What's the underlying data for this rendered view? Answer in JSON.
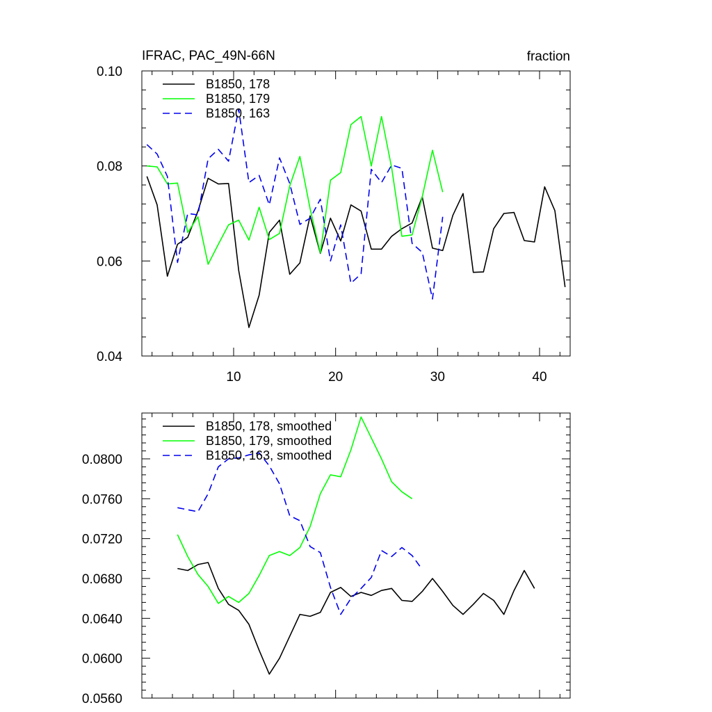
{
  "chart_data": [
    {
      "type": "line",
      "title": "IFRAC, PAC_49N-66N",
      "units_label": "fraction",
      "xlim": [
        1,
        43
      ],
      "ylim": [
        0.04,
        0.1
      ],
      "x_ticks": [
        10,
        20,
        30,
        40
      ],
      "x_tick_labels": [
        "10",
        "20",
        "30",
        "40"
      ],
      "y_ticks": [
        0.04,
        0.06,
        0.08,
        0.1
      ],
      "y_tick_labels": [
        "0.04",
        "0.06",
        "0.08",
        "0.10"
      ],
      "legend_position": "top-left",
      "series": [
        {
          "name": "B1850, 178",
          "color": "#000000",
          "dash": "solid",
          "x_start": 1.5,
          "values": [
            0.0778,
            0.0718,
            0.0568,
            0.0635,
            0.065,
            0.0705,
            0.0774,
            0.0762,
            0.0763,
            0.058,
            0.046,
            0.0528,
            0.066,
            0.0686,
            0.0572,
            0.0596,
            0.0695,
            0.0616,
            0.069,
            0.0642,
            0.0718,
            0.0705,
            0.0625,
            0.0625,
            0.0652,
            0.0668,
            0.068,
            0.0735,
            0.0627,
            0.0622,
            0.0696,
            0.0742,
            0.0576,
            0.0577,
            0.0668,
            0.07,
            0.0702,
            0.0643,
            0.064,
            0.0756,
            0.0706,
            0.0545
          ]
        },
        {
          "name": "B1850, 179",
          "color": "#00ff00",
          "dash": "solid",
          "x_start": 1.5,
          "values": [
            0.08,
            0.0798,
            0.0762,
            0.0764,
            0.066,
            0.0693,
            0.0593,
            0.0635,
            0.0676,
            0.0686,
            0.0644,
            0.0713,
            0.0645,
            0.0658,
            0.0758,
            0.082,
            0.071,
            0.0617,
            0.077,
            0.0786,
            0.0887,
            0.0904,
            0.08,
            0.0904,
            0.0796,
            0.0652,
            0.0655,
            0.0735,
            0.0833,
            0.0745
          ]
        },
        {
          "name": "B1850, 163",
          "color": "#0000ee",
          "dash": "dashed",
          "x_start": 1.5,
          "values": [
            0.0845,
            0.0825,
            0.0778,
            0.0597,
            0.07,
            0.0697,
            0.0815,
            0.0835,
            0.081,
            0.092,
            0.0765,
            0.078,
            0.0718,
            0.0817,
            0.0763,
            0.0677,
            0.069,
            0.073,
            0.06,
            0.0676,
            0.0553,
            0.0573,
            0.0793,
            0.0765,
            0.0802,
            0.0795,
            0.0637,
            0.0618,
            0.052,
            0.0693
          ]
        }
      ]
    },
    {
      "type": "line",
      "xlim": [
        1,
        43
      ],
      "ylim": [
        0.056,
        0.0846
      ],
      "x_ticks": [
        10,
        20,
        30,
        40
      ],
      "y_ticks": [
        0.056,
        0.06,
        0.064,
        0.068,
        0.072,
        0.076,
        0.08
      ],
      "y_tick_labels": [
        "0.0560",
        "0.0600",
        "0.0640",
        "0.0680",
        "0.0720",
        "0.0760",
        "0.0800"
      ],
      "legend_position": "top-left",
      "series": [
        {
          "name": "B1850, 178, smoothed",
          "color": "#000000",
          "dash": "solid",
          "x_start": 4.5,
          "values": [
            0.069,
            0.0688,
            0.0694,
            0.0696,
            0.067,
            0.0654,
            0.0648,
            0.0634,
            0.0608,
            0.0584,
            0.06,
            0.0622,
            0.0644,
            0.0642,
            0.0646,
            0.0666,
            0.0671,
            0.0662,
            0.0666,
            0.0663,
            0.0668,
            0.067,
            0.0658,
            0.0657,
            0.0667,
            0.068,
            0.0667,
            0.0653,
            0.0644,
            0.0654,
            0.0665,
            0.0658,
            0.0644,
            0.0668,
            0.0688,
            0.067
          ]
        },
        {
          "name": "B1850, 179, smoothed",
          "color": "#00ff00",
          "dash": "solid",
          "x_start": 4.5,
          "values": [
            0.0724,
            0.0702,
            0.0684,
            0.0672,
            0.0655,
            0.0662,
            0.0656,
            0.0665,
            0.0683,
            0.0703,
            0.0707,
            0.0703,
            0.0711,
            0.0732,
            0.0765,
            0.0784,
            0.0782,
            0.0809,
            0.0842,
            0.0821,
            0.08,
            0.0777,
            0.0767,
            0.076
          ]
        },
        {
          "name": "B1850, 163, smoothed",
          "color": "#0000ee",
          "dash": "dashed",
          "x_start": 4.5,
          "values": [
            0.0751,
            0.0749,
            0.0747,
            0.0765,
            0.0792,
            0.08,
            0.0801,
            0.0804,
            0.0806,
            0.0793,
            0.0775,
            0.0743,
            0.0738,
            0.0712,
            0.0706,
            0.0671,
            0.0644,
            0.066,
            0.067,
            0.0681,
            0.0708,
            0.0702,
            0.0711,
            0.0703,
            0.0689
          ]
        }
      ]
    }
  ]
}
